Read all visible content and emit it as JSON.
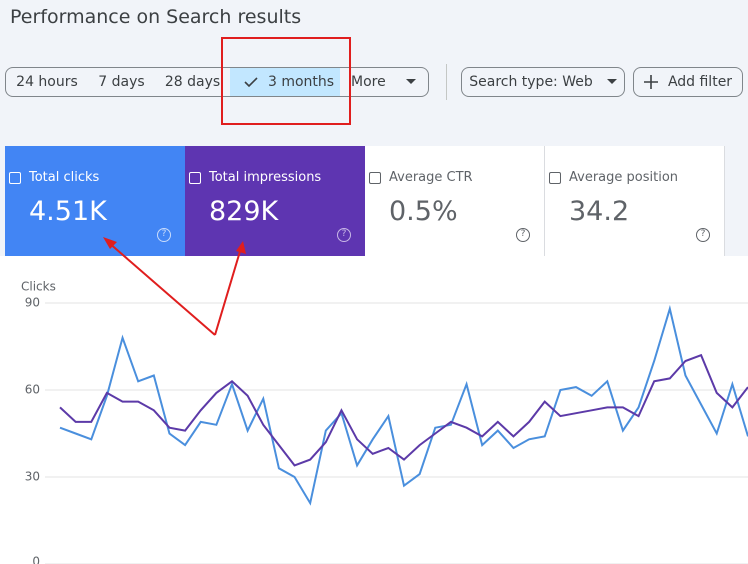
{
  "header": {
    "title": "Performance on Search results"
  },
  "date_filters": [
    "24 hours",
    "7 days",
    "28 days",
    "3 months",
    "More"
  ],
  "filters": [
    "Search type: Web",
    "Add filter"
  ],
  "metrics": [
    {
      "label": "Total clicks",
      "value": "4.51K"
    },
    {
      "label": "Total impressions",
      "value": "829K"
    },
    {
      "label": "Average CTR",
      "value": "0.5%"
    },
    {
      "label": "Average position",
      "value": "34.2"
    }
  ],
  "chart_data": {
    "type": "line",
    "y_label": "Clicks",
    "ylim": [
      0,
      90
    ],
    "yticks": [
      0,
      30,
      60,
      90
    ],
    "grid": true,
    "series": [
      {
        "color": "#4a8fdd",
        "values": [
          47,
          45,
          43,
          58,
          78,
          63,
          65,
          45,
          41,
          49,
          48,
          62,
          46,
          57,
          33,
          30,
          21,
          46,
          52,
          34,
          43,
          51,
          27,
          31,
          47,
          48,
          62,
          41,
          46,
          40,
          43,
          44,
          60,
          61,
          58,
          63,
          46,
          54,
          70,
          88,
          65,
          55,
          45,
          62,
          44
        ]
      },
      {
        "color": "#5c3aa8",
        "values": [
          54,
          49,
          49,
          59,
          56,
          56,
          53,
          47,
          46,
          53,
          59,
          63,
          58,
          48,
          41,
          34,
          36,
          42,
          53,
          43,
          38,
          40,
          36,
          41,
          45,
          49,
          47,
          44,
          49,
          44,
          49,
          56,
          51,
          52,
          53,
          54,
          54,
          51,
          63,
          64,
          70,
          72,
          59,
          54,
          61
        ]
      }
    ]
  }
}
